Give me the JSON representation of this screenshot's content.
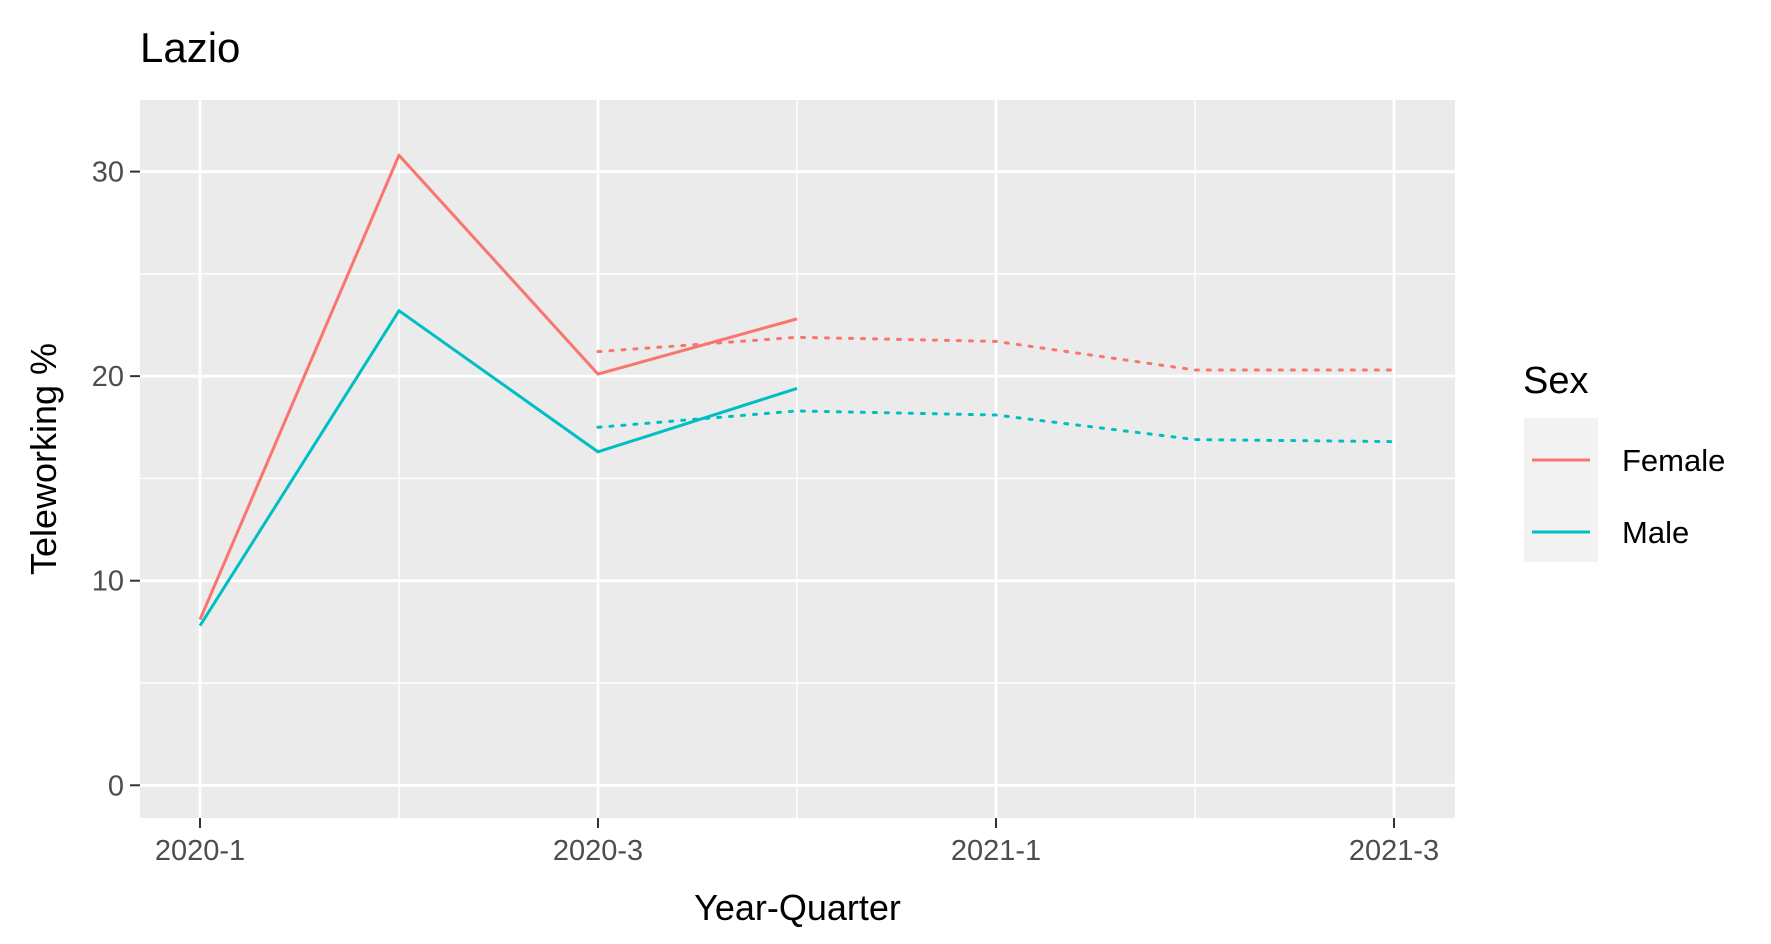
{
  "chart_data": {
    "type": "line",
    "title": "Lazio",
    "xlabel": "Year-Quarter",
    "ylabel": "Teleworking %",
    "x": [
      "2020-1",
      "2020-2",
      "2020-3",
      "2020-4",
      "2021-1",
      "2021-2",
      "2021-3"
    ],
    "x_tick_labels": [
      "2020-1",
      "2020-3",
      "2021-1",
      "2021-3"
    ],
    "y_ticks": [
      0,
      10,
      20,
      30
    ],
    "ylim": [
      -1.6,
      33.5
    ],
    "grid": true,
    "legend": {
      "title": "Sex",
      "position": "right"
    },
    "series": [
      {
        "name": "Female",
        "color": "#F8766D",
        "linestyle": "solid",
        "x": [
          "2020-1",
          "2020-2",
          "2020-3",
          "2020-4"
        ],
        "values": [
          8.1,
          30.8,
          20.1,
          22.8
        ]
      },
      {
        "name": "Male",
        "color": "#00BFC4",
        "linestyle": "solid",
        "x": [
          "2020-1",
          "2020-2",
          "2020-3",
          "2020-4"
        ],
        "values": [
          7.8,
          23.2,
          16.3,
          19.4
        ]
      },
      {
        "name": "Female",
        "color": "#F8766D",
        "linestyle": "dotted",
        "x": [
          "2020-3",
          "2020-4",
          "2021-1",
          "2021-2",
          "2021-3"
        ],
        "values": [
          21.2,
          21.9,
          21.7,
          20.3,
          20.3
        ]
      },
      {
        "name": "Male",
        "color": "#00BFC4",
        "linestyle": "dotted",
        "x": [
          "2020-3",
          "2020-4",
          "2021-1",
          "2021-2",
          "2021-3"
        ],
        "values": [
          17.5,
          18.3,
          18.1,
          16.9,
          16.8
        ]
      }
    ]
  }
}
